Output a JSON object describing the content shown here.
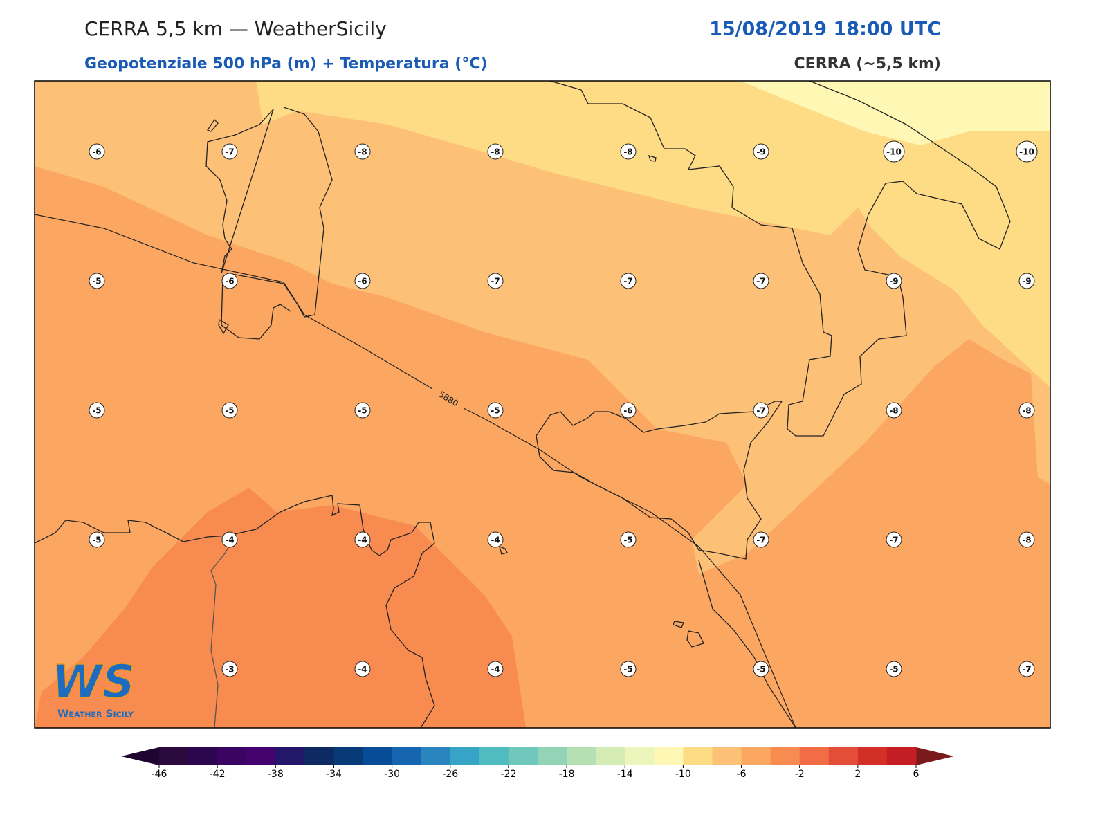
{
  "header": {
    "title": "CERRA 5,5 km — WeatherSicily",
    "datetime": "15/08/2019 18:00 UTC",
    "subtitle": "Geopotenziale 500 hPa (m) + Temperatura (°C)",
    "source": "CERRA (~5,5 km)"
  },
  "temperature_grid": [
    [
      -6,
      -7,
      -8,
      -8,
      -8,
      -9,
      -10,
      -10
    ],
    [
      -5,
      -6,
      -6,
      -7,
      -7,
      -7,
      -9,
      -9
    ],
    [
      -5,
      -5,
      -5,
      -5,
      -6,
      -7,
      -8,
      -8
    ],
    [
      -5,
      -4,
      -4,
      -4,
      -5,
      -7,
      -7,
      -8
    ],
    [
      null,
      -3,
      -4,
      -4,
      -5,
      -5,
      -5,
      -7
    ]
  ],
  "contours": [
    5880
  ],
  "logo": {
    "mark": "WS",
    "text": "Weather Sicily"
  },
  "colorbar": {
    "levels": [
      -46,
      -44,
      -42,
      -40,
      -38,
      -36,
      -34,
      -32,
      -30,
      -28,
      -26,
      -24,
      -22,
      -20,
      -18,
      -16,
      -14,
      -12,
      -10,
      -8,
      -6,
      -4,
      -2,
      0,
      2,
      4,
      6
    ],
    "colors": [
      "#2b0a3d",
      "#2d0650",
      "#3a0462",
      "#45036f",
      "#23176a",
      "#0d2a62",
      "#083a78",
      "#074c96",
      "#1565b0",
      "#2a85be",
      "#37a4c7",
      "#50bcc0",
      "#6fc8bb",
      "#93d4b6",
      "#b5e0b3",
      "#d4ecb4",
      "#ecf5bb",
      "#fef8b4",
      "#fedb85",
      "#fcc177",
      "#fba762",
      "#f88b50",
      "#f26d45",
      "#e44e39",
      "#d22f27",
      "#c21e23"
    ],
    "under_color": "#1e0530",
    "over_color": "#7a1a1a",
    "ticks": [
      -46,
      -42,
      -38,
      -34,
      -30,
      -26,
      -22,
      -18,
      -14,
      -10,
      -6,
      -2,
      2,
      6
    ]
  }
}
